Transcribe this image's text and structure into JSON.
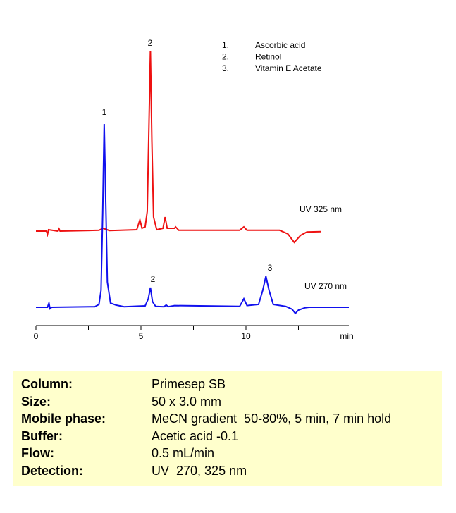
{
  "chart_data": {
    "type": "line",
    "x_label": "min",
    "xlim": [
      0,
      14.9
    ],
    "xticks": [
      0,
      5,
      10
    ],
    "xminor_ticks": [
      2.5,
      7.5,
      12.5
    ],
    "ylim": [
      0,
      100
    ],
    "compounds": [
      {
        "number": "1.",
        "name": "Ascorbic acid"
      },
      {
        "number": "2.",
        "name": "Retinol"
      },
      {
        "number": "3.",
        "name": "Vitamin E Acetate"
      }
    ],
    "series": [
      {
        "name": "UV 325 nm",
        "color": "#ee1111",
        "peak_labels": [
          "2"
        ],
        "x": [
          0,
          0.5,
          0.55,
          0.6,
          1.05,
          1.1,
          1.15,
          3.0,
          3.2,
          3.5,
          4.8,
          4.95,
          5.05,
          5.2,
          5.3,
          5.38,
          5.45,
          5.52,
          5.6,
          5.75,
          6.05,
          6.15,
          6.25,
          6.6,
          6.65,
          6.8,
          9.7,
          9.9,
          10.05,
          11.6,
          12.0,
          12.3,
          12.6,
          12.9,
          13.56
        ],
        "values": [
          33,
          33,
          31.8,
          33.5,
          33,
          33.8,
          33,
          33.3,
          34,
          33.2,
          33.5,
          37,
          34,
          34.5,
          40,
          70,
          97,
          65,
          38,
          33.5,
          34,
          38,
          34,
          34,
          34.5,
          33.3,
          33.3,
          34.5,
          33.3,
          33.3,
          32,
          29,
          31.5,
          32.7,
          32.8
        ]
      },
      {
        "name": "UV 270 nm",
        "color": "#1111ee",
        "peak_labels": [
          "1",
          "2",
          "3"
        ],
        "x": [
          0,
          0.55,
          0.62,
          0.67,
          0.75,
          2.8,
          3.0,
          3.1,
          3.18,
          3.25,
          3.32,
          3.4,
          3.55,
          3.8,
          4.2,
          5.2,
          5.35,
          5.45,
          5.55,
          5.7,
          6.1,
          6.2,
          6.3,
          6.6,
          9.7,
          9.9,
          10.05,
          10.6,
          10.8,
          10.95,
          11.1,
          11.3,
          11.9,
          12.2,
          12.35,
          12.5,
          12.8,
          13.0,
          14.9
        ],
        "values": [
          6,
          6,
          7.5,
          5.5,
          6,
          6.2,
          7,
          12,
          40,
          71,
          45,
          15,
          7.5,
          6.8,
          6.2,
          6.5,
          9,
          13,
          8,
          6.3,
          6.2,
          6.8,
          6.2,
          6.6,
          6.3,
          9,
          6.6,
          7,
          12,
          17,
          12,
          7,
          6.3,
          5.3,
          3.8,
          5,
          5.8,
          6,
          6
        ]
      }
    ]
  },
  "conditions": [
    [
      "Column:",
      "Primesep SB"
    ],
    [
      "Size:",
      "50 x 3.0 mm"
    ],
    [
      "Mobile phase:",
      "MeCN gradient  50-80%, 5 min, 7 min hold"
    ],
    [
      "Buffer:",
      "Acetic acid -0.1"
    ],
    [
      "Flow:",
      "0.5 mL/min"
    ],
    [
      "Detection:",
      "UV  270, 325 nm"
    ]
  ]
}
